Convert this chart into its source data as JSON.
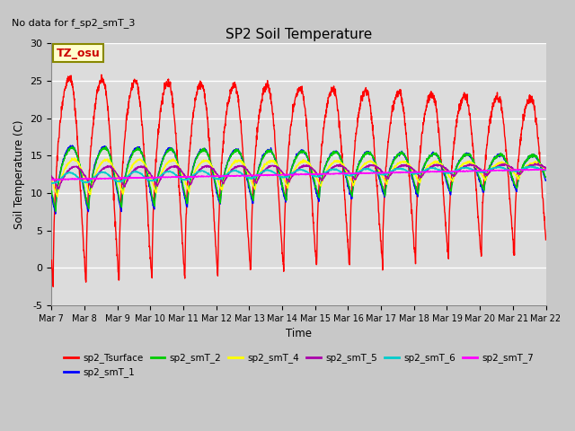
{
  "title": "SP2 Soil Temperature",
  "ylabel": "Soil Temperature (C)",
  "xlabel": "Time",
  "no_data_text": "No data for f_sp2_smT_3",
  "tz_label": "TZ_osu",
  "ylim": [
    -5,
    30
  ],
  "fig_facecolor": "#d8d8d8",
  "plot_facecolor": "#dcdcdc",
  "x_tick_labels": [
    "Mar 7",
    "Mar 8",
    "Mar 9",
    "Mar 10",
    "Mar 11",
    "Mar 12",
    "Mar 13",
    "Mar 14",
    "Mar 15",
    "Mar 16",
    "Mar 17",
    "Mar 18",
    "Mar 19",
    "Mar 20",
    "Mar 21",
    "Mar 22"
  ],
  "yticks": [
    -5,
    0,
    5,
    10,
    15,
    20,
    25,
    30
  ],
  "legend_entries": [
    {
      "label": "sp2_Tsurface",
      "color": "#ff0000"
    },
    {
      "label": "sp2_smT_1",
      "color": "#0000ff"
    },
    {
      "label": "sp2_smT_2",
      "color": "#00cc00"
    },
    {
      "label": "sp2_smT_4",
      "color": "#ffff00"
    },
    {
      "label": "sp2_smT_5",
      "color": "#aa00aa"
    },
    {
      "label": "sp2_smT_6",
      "color": "#00cccc"
    },
    {
      "label": "sp2_smT_7",
      "color": "#ff00ff"
    }
  ]
}
